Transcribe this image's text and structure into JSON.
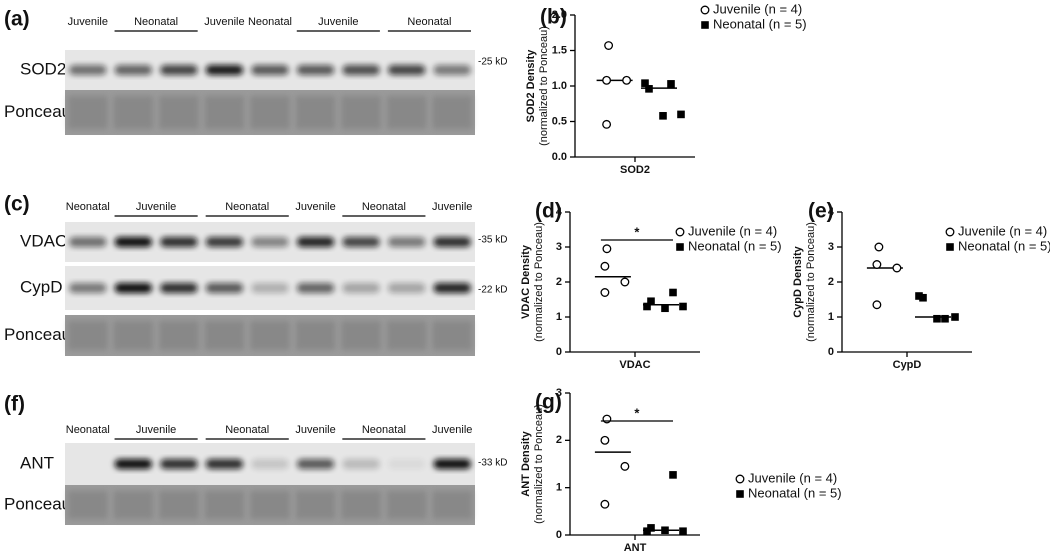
{
  "blots": [
    {
      "label": "(a)",
      "groups": [
        "Juvenile",
        "Neonatal",
        "Juvenile",
        "Neonatal",
        "Juvenile",
        "Neonatal"
      ],
      "rows": [
        "SOD2",
        "Ponceau"
      ],
      "markers": [
        "-25 kD"
      ]
    },
    {
      "label": "(c)",
      "groups": [
        "Neonatal",
        "Juvenile",
        "Neonatal",
        "Juvenile",
        "Neonatal",
        "Juvenile"
      ],
      "rows": [
        "VDAC",
        "CypD",
        "Ponceau"
      ],
      "markers": [
        "-35 kD",
        "-22 kD"
      ]
    },
    {
      "label": "(f)",
      "groups": [
        "Neonatal",
        "Juvenile",
        "Neonatal",
        "Juvenile",
        "Neonatal",
        "Juvenile"
      ],
      "rows": [
        "ANT",
        "Ponceau"
      ],
      "markers": [
        "-33 kD"
      ]
    }
  ],
  "chart_data": [
    {
      "type": "scatter",
      "title": "(b)",
      "y_label": "SOD2 Density",
      "y_label_sub": "(normalized to  Ponceau)",
      "categories": [
        "SOD2"
      ],
      "ylim": [
        0,
        2
      ],
      "yticks": [
        {
          "value": 0,
          "label": "0.0"
        },
        0.5,
        {
          "value": 1,
          "label": "1.0"
        },
        1.5,
        {
          "value": 2,
          "label": "2.0"
        }
      ],
      "legend": "upper right",
      "series": [
        {
          "name": "Juvenile (n = 4)",
          "color": "#ffffff",
          "values": [
            1.57,
            1.08,
            1.08,
            0.46
          ],
          "mean": 1.08
        },
        {
          "name": "Neonatal (n = 5)",
          "color": "#000000",
          "values": [
            0.96,
            1.03,
            1.04,
            0.58,
            0.6
          ],
          "mean": 0.97
        }
      ]
    },
    {
      "type": "scatter",
      "title": "(d)",
      "y_label": "VDAC Density",
      "y_label_sub": "(normalized to  Ponceau)",
      "categories": [
        "VDAC"
      ],
      "ylim": [
        0,
        4
      ],
      "yticks": [
        0,
        1,
        2,
        3,
        4
      ],
      "legend": "upper right",
      "annotation": "*",
      "series": [
        {
          "name": "Juvenile (n = 4)",
          "color": "#ffffff",
          "values": [
            2.95,
            2.45,
            2.0,
            1.7
          ],
          "mean": 2.15
        },
        {
          "name": "Neonatal (n = 5)",
          "color": "#000000",
          "values": [
            1.45,
            1.7,
            1.3,
            1.25,
            1.3
          ],
          "mean": 1.35
        }
      ]
    },
    {
      "type": "scatter",
      "title": "(e)",
      "y_label": "CypD Density",
      "y_label_sub": "(normalized to  Ponceau)",
      "categories": [
        "CypD"
      ],
      "ylim": [
        0,
        4
      ],
      "yticks": [
        0,
        1,
        2,
        3,
        4
      ],
      "legend": "upper right",
      "series": [
        {
          "name": "Juvenile (n = 4)",
          "color": "#ffffff",
          "values": [
            3.0,
            2.5,
            2.4,
            1.35
          ],
          "mean": 2.4
        },
        {
          "name": "Neonatal (n = 5)",
          "color": "#000000",
          "values": [
            1.55,
            0.95,
            1.6,
            0.95,
            1.0
          ],
          "mean": 1.0
        }
      ]
    },
    {
      "type": "scatter",
      "title": "(g)",
      "y_label": "ANT Density",
      "y_label_sub": "(normalized to  Ponceau)",
      "categories": [
        "ANT"
      ],
      "ylim": [
        0,
        3
      ],
      "yticks": [
        0,
        1,
        2,
        3
      ],
      "legend": "lower right",
      "annotation": "*",
      "series": [
        {
          "name": "Juvenile (n = 4)",
          "color": "#ffffff",
          "values": [
            2.45,
            2.0,
            1.45,
            0.65
          ],
          "mean": 1.75
        },
        {
          "name": "Neonatal (n = 5)",
          "color": "#000000",
          "values": [
            0.15,
            1.27,
            0.08,
            0.1,
            0.08
          ],
          "mean": 0.1
        }
      ]
    }
  ]
}
